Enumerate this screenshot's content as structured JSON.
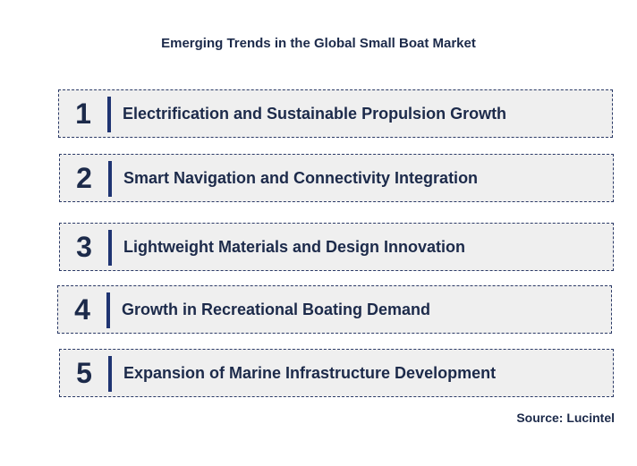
{
  "title": "Emerging Trends in the Global Small Boat Market",
  "trends": [
    {
      "number": "1",
      "label": "Electrification and Sustainable Propulsion Growth"
    },
    {
      "number": "2",
      "label": "Smart Navigation and Connectivity Integration"
    },
    {
      "number": "3",
      "label": "Lightweight Materials and Design Innovation"
    },
    {
      "number": "4",
      "label": "Growth in Recreational Boating Demand"
    },
    {
      "number": "5",
      "label": "Expansion of Marine Infrastructure Development"
    }
  ],
  "source": "Source: Lucintel",
  "colors": {
    "text": "#1c2a4a",
    "accent_bar": "#1f3472",
    "box_background": "#efefef",
    "box_border": "#2b3a67"
  }
}
